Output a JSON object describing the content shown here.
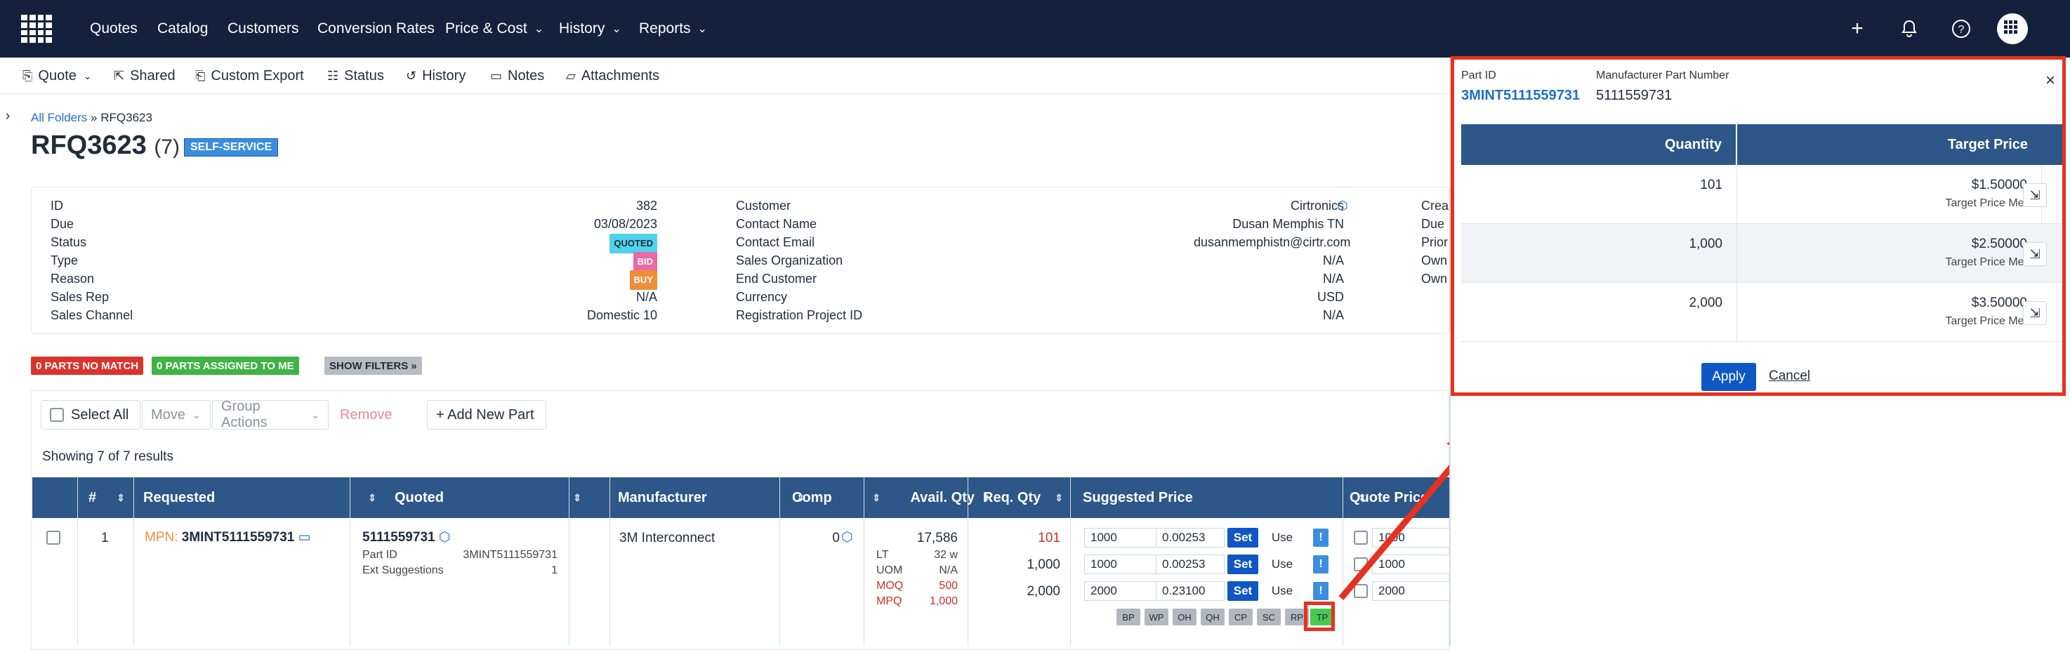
{
  "nav": {
    "items": [
      "Quotes",
      "Catalog",
      "Customers",
      "Conversion Rates",
      "Price & Cost",
      "History",
      "Reports"
    ],
    "icons": [
      "plus-icon",
      "bell-icon",
      "help-icon",
      "apps-icon"
    ]
  },
  "toolbar": {
    "quote": "Quote",
    "shared": "Shared",
    "custom_export": "Custom Export",
    "status": "Status",
    "history": "History",
    "notes": "Notes",
    "attachments": "Attachments"
  },
  "breadcrumb": {
    "root": "All Folders",
    "sep": "»",
    "current": "RFQ3623"
  },
  "header": {
    "title": "RFQ3623",
    "count": "(7)",
    "badge": "SELF-SERVICE"
  },
  "info": {
    "left": [
      {
        "label": "ID",
        "value": "382"
      },
      {
        "label": "Due",
        "value": "03/08/2023"
      },
      {
        "label": "Status",
        "value": "QUOTED"
      },
      {
        "label": "Type",
        "value": "BID"
      },
      {
        "label": "Reason",
        "value": "BUY"
      },
      {
        "label": "Sales Rep",
        "value": "N/A"
      },
      {
        "label": "Sales Channel",
        "value": "Domestic 10"
      }
    ],
    "mid": [
      {
        "label": "Customer",
        "value": "Cirtronics"
      },
      {
        "label": "Contact Name",
        "value": "Dusan Memphis TN"
      },
      {
        "label": "Contact Email",
        "value": "dusanmemphistn@cirtr.com"
      },
      {
        "label": "Sales Organization",
        "value": "N/A"
      },
      {
        "label": "End Customer",
        "value": "N/A"
      },
      {
        "label": "Currency",
        "value": "USD"
      },
      {
        "label": "Registration Project ID",
        "value": "N/A"
      }
    ],
    "right": [
      "Crea",
      "Due",
      "Prior",
      "Own",
      "Own"
    ],
    "colors": {
      "quoted": "#4fd3ea",
      "bid": "#e86aa6",
      "buy": "#ec8f3a"
    }
  },
  "filters": {
    "no_match": "0 PARTS NO MATCH",
    "assigned": "0 PARTS ASSIGNED TO ME",
    "show": "SHOW FILTERS »"
  },
  "actions": {
    "select_all": "Select All",
    "move": "Move",
    "group": "Group Actions",
    "remove": "Remove",
    "add": "+ Add New Part"
  },
  "showing": "Showing 7 of 7 results",
  "table": {
    "headers": {
      "num": "#",
      "requested": "Requested",
      "quoted": "Quoted",
      "manufacturer": "Manufacturer",
      "comp": "Comp",
      "avail": "Avail. Qty",
      "req": "Req. Qty",
      "suggested": "Suggested Price",
      "quote_price": "Quote Price"
    },
    "row": {
      "num": "1",
      "mpn_label": "MPN:",
      "mpn": "3MINT5111559731",
      "quoted_pn": "5111559731",
      "part_id_label": "Part ID",
      "part_id": "3MINT5111559731",
      "ext_label": "Ext Suggestions",
      "ext": "1",
      "manufacturer": "3M Interconnect",
      "comp": "0",
      "avail": "17,586",
      "lt_label": "LT",
      "lt": "32 w",
      "uom_label": "UOM",
      "uom": "N/A",
      "moq_label": "MOQ",
      "moq": "500",
      "mpq_label": "MPQ",
      "mpq": "1,000",
      "req_qty": [
        "101",
        "1,000",
        "2,000"
      ],
      "suggested": [
        {
          "qty": "1000",
          "price": "0.00253"
        },
        {
          "qty": "1000",
          "price": "0.00253"
        },
        {
          "qty": "2000",
          "price": "0.23100"
        }
      ],
      "set": "Set",
      "use": "Use",
      "excl": "!",
      "tags": [
        "BP",
        "WP",
        "OH",
        "QH",
        "CP",
        "SC",
        "RP",
        "TP"
      ],
      "quote_qty": [
        "1000",
        "1000",
        "2000"
      ]
    }
  },
  "panel": {
    "part_id_label": "Part ID",
    "part_id": "3MINT5111559731",
    "mpn_label": "Manufacturer Part Number",
    "mpn": "5111559731",
    "close": "×",
    "col_qty": "Quantity",
    "col_price": "Target Price",
    "rows": [
      {
        "qty": "101",
        "price": "$1.50000",
        "status": "Target Price Met"
      },
      {
        "qty": "1,000",
        "price": "$2.50000",
        "status": "Target Price Met"
      },
      {
        "qty": "2,000",
        "price": "$3.50000",
        "status": "Target Price Met"
      }
    ],
    "apply": "Apply",
    "cancel": "Cancel"
  }
}
